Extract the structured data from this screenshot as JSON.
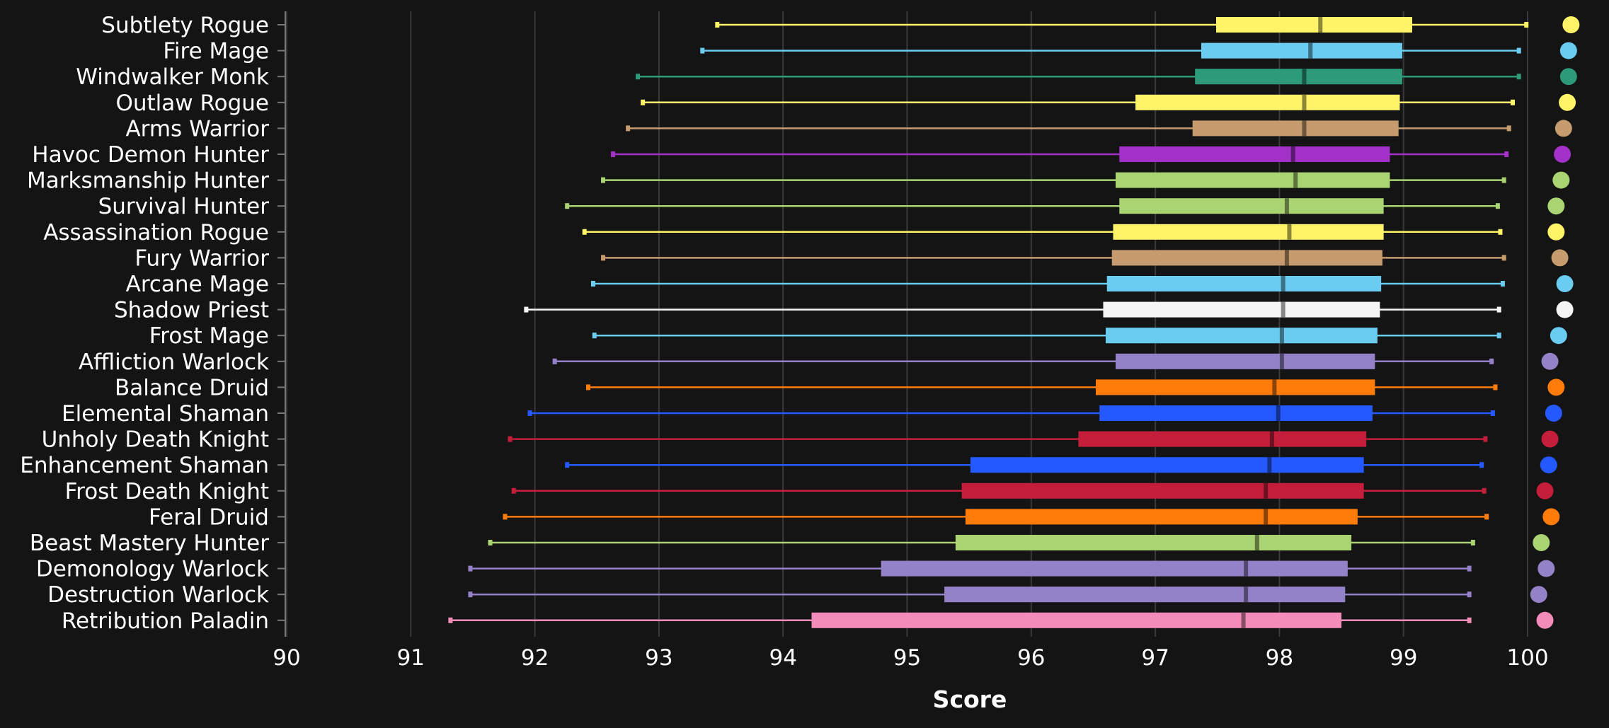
{
  "chart_data": {
    "type": "boxplot",
    "xlabel": "Score",
    "ylabel": "",
    "xlim": [
      90,
      100
    ],
    "x_ticks": [
      "90",
      "91",
      "92",
      "93",
      "94",
      "95",
      "96",
      "97",
      "98",
      "99",
      "100"
    ],
    "grid": "vertical",
    "legend": "none",
    "series": [
      {
        "name": "Subtlety Rogue",
        "color": "#FFF468",
        "min": 93.47,
        "q1": 97.49,
        "median": 98.33,
        "q3": 99.07,
        "max": 99.99,
        "dot": 100.35
      },
      {
        "name": "Fire Mage",
        "color": "#69CCF0",
        "min": 93.35,
        "q1": 97.37,
        "median": 98.25,
        "q3": 98.99,
        "max": 99.93,
        "dot": 100.33
      },
      {
        "name": "Windwalker Monk",
        "color": "#2E9B78",
        "min": 92.83,
        "q1": 97.32,
        "median": 98.2,
        "q3": 98.99,
        "max": 99.93,
        "dot": 100.33
      },
      {
        "name": "Outlaw Rogue",
        "color": "#FFF468",
        "min": 92.87,
        "q1": 96.84,
        "median": 98.2,
        "q3": 98.97,
        "max": 99.88,
        "dot": 100.32
      },
      {
        "name": "Arms Warrior",
        "color": "#C69B6D",
        "min": 92.75,
        "q1": 97.3,
        "median": 98.2,
        "q3": 98.96,
        "max": 99.85,
        "dot": 100.29
      },
      {
        "name": "Havoc Demon Hunter",
        "color": "#A330C9",
        "min": 92.63,
        "q1": 96.71,
        "median": 98.11,
        "q3": 98.89,
        "max": 99.83,
        "dot": 100.28
      },
      {
        "name": "Marksmanship Hunter",
        "color": "#AAD372",
        "min": 92.55,
        "q1": 96.68,
        "median": 98.13,
        "q3": 98.89,
        "max": 99.81,
        "dot": 100.27
      },
      {
        "name": "Survival Hunter",
        "color": "#AAD372",
        "min": 92.26,
        "q1": 96.71,
        "median": 98.06,
        "q3": 98.84,
        "max": 99.76,
        "dot": 100.23
      },
      {
        "name": "Assassination Rogue",
        "color": "#FFF468",
        "min": 92.4,
        "q1": 96.66,
        "median": 98.08,
        "q3": 98.84,
        "max": 99.78,
        "dot": 100.23
      },
      {
        "name": "Fury Warrior",
        "color": "#C69B6D",
        "min": 92.55,
        "q1": 96.65,
        "median": 98.06,
        "q3": 98.83,
        "max": 99.81,
        "dot": 100.26
      },
      {
        "name": "Arcane Mage",
        "color": "#69CCF0",
        "min": 92.47,
        "q1": 96.61,
        "median": 98.03,
        "q3": 98.82,
        "max": 99.8,
        "dot": 100.3
      },
      {
        "name": "Shadow Priest",
        "color": "#F5F5F5",
        "min": 91.93,
        "q1": 96.58,
        "median": 98.03,
        "q3": 98.81,
        "max": 99.77,
        "dot": 100.3
      },
      {
        "name": "Frost Mage",
        "color": "#69CCF0",
        "min": 92.48,
        "q1": 96.6,
        "median": 98.02,
        "q3": 98.79,
        "max": 99.77,
        "dot": 100.25
      },
      {
        "name": "Affliction Warlock",
        "color": "#9482C9",
        "min": 92.16,
        "q1": 96.68,
        "median": 98.02,
        "q3": 98.77,
        "max": 99.71,
        "dot": 100.18
      },
      {
        "name": "Balance Druid",
        "color": "#FF7C0A",
        "min": 92.43,
        "q1": 96.52,
        "median": 97.96,
        "q3": 98.77,
        "max": 99.74,
        "dot": 100.23
      },
      {
        "name": "Elemental Shaman",
        "color": "#2459FF",
        "min": 91.96,
        "q1": 96.55,
        "median": 97.99,
        "q3": 98.75,
        "max": 99.72,
        "dot": 100.21
      },
      {
        "name": "Unholy Death Knight",
        "color": "#C41E3A",
        "min": 91.8,
        "q1": 96.38,
        "median": 97.94,
        "q3": 98.7,
        "max": 99.66,
        "dot": 100.18
      },
      {
        "name": "Enhancement Shaman",
        "color": "#2459FF",
        "min": 92.26,
        "q1": 95.51,
        "median": 97.92,
        "q3": 98.68,
        "max": 99.63,
        "dot": 100.17
      },
      {
        "name": "Frost Death Knight",
        "color": "#C41E3A",
        "min": 91.83,
        "q1": 95.44,
        "median": 97.89,
        "q3": 98.68,
        "max": 99.65,
        "dot": 100.14
      },
      {
        "name": "Feral Druid",
        "color": "#FF7C0A",
        "min": 91.76,
        "q1": 95.47,
        "median": 97.89,
        "q3": 98.63,
        "max": 99.67,
        "dot": 100.19
      },
      {
        "name": "Beast Mastery Hunter",
        "color": "#AAD372",
        "min": 91.64,
        "q1": 95.39,
        "median": 97.82,
        "q3": 98.58,
        "max": 99.56,
        "dot": 100.11
      },
      {
        "name": "Demonology Warlock",
        "color": "#9482C9",
        "min": 91.48,
        "q1": 94.79,
        "median": 97.73,
        "q3": 98.55,
        "max": 99.53,
        "dot": 100.15
      },
      {
        "name": "Destruction Warlock",
        "color": "#9482C9",
        "min": 91.48,
        "q1": 95.3,
        "median": 97.73,
        "q3": 98.53,
        "max": 99.53,
        "dot": 100.09
      },
      {
        "name": "Retribution Paladin",
        "color": "#F48CBA",
        "min": 91.32,
        "q1": 94.23,
        "median": 97.71,
        "q3": 98.5,
        "max": 99.53,
        "dot": 100.14
      }
    ]
  }
}
